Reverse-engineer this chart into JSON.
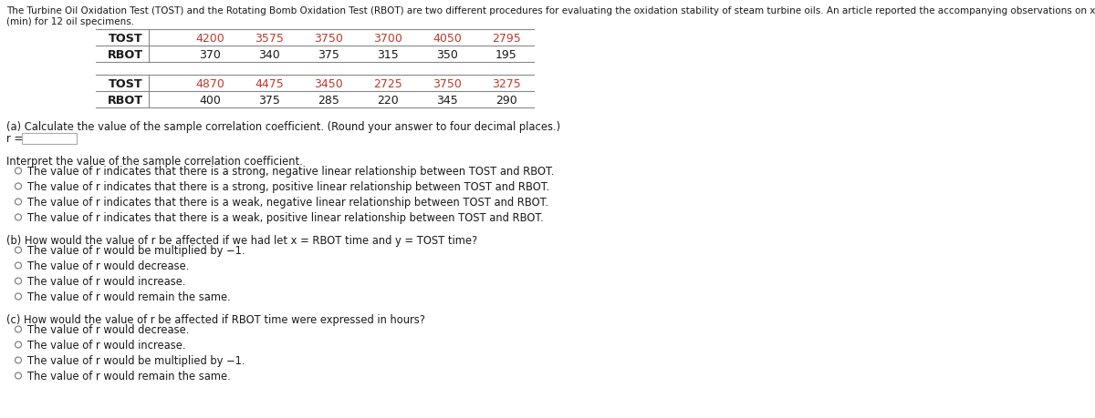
{
  "intro_line1": "The Turbine Oil Oxidation Test (TOST) and the Rotating Bomb Oxidation Test (RBOT) are two different procedures for evaluating the oxidation stability of steam turbine oils. An article reported the accompanying observations on x = TOST time (hr) and y = RBOT time",
  "intro_line2": "(min) for 12 oil specimens.",
  "table1": {
    "TOST": [
      4200,
      3575,
      3750,
      3700,
      4050,
      2795
    ],
    "RBOT": [
      370,
      340,
      375,
      315,
      350,
      195
    ]
  },
  "table2": {
    "TOST": [
      4870,
      4475,
      3450,
      2725,
      3750,
      3275
    ],
    "RBOT": [
      400,
      375,
      285,
      220,
      345,
      290
    ]
  },
  "section_a_q": "(a) Calculate the value of the sample correlation coefficient. (Round your answer to four decimal places.)",
  "r_label": "r =",
  "interpret_header": "Interpret the value of the sample correlation coefficient.",
  "a_options": [
    "The value of r indicates that there is a strong, negative linear relationship between TOST and RBOT.",
    "The value of r indicates that there is a strong, positive linear relationship between TOST and RBOT.",
    "The value of r indicates that there is a weak, negative linear relationship between TOST and RBOT.",
    "The value of r indicates that there is a weak, positive linear relationship between TOST and RBOT."
  ],
  "section_b_q": "(b) How would the value of r be affected if we had let x = RBOT time and y = TOST time?",
  "b_options": [
    "The value of r would be multiplied by −1.",
    "The value of r would decrease.",
    "The value of r would increase.",
    "The value of r would remain the same."
  ],
  "section_c_q": "(c) How would the value of r be affected if RBOT time were expressed in hours?",
  "c_options": [
    "The value of r would decrease.",
    "The value of r would increase.",
    "The value of r would be multiplied by −1.",
    "The value of r would remain the same."
  ],
  "bg_color": "#ffffff",
  "text_color": "#1a1a1a",
  "tost_color": "#c0392b",
  "rbot_color": "#1a1a1a",
  "label_bold_color": "#1a1a1a",
  "line_color": "#888888",
  "radio_edge": "#777777",
  "fs_intro": 7.5,
  "fs_table_label": 9.2,
  "fs_table_val": 9.0,
  "fs_body": 8.3,
  "fs_option": 8.3
}
